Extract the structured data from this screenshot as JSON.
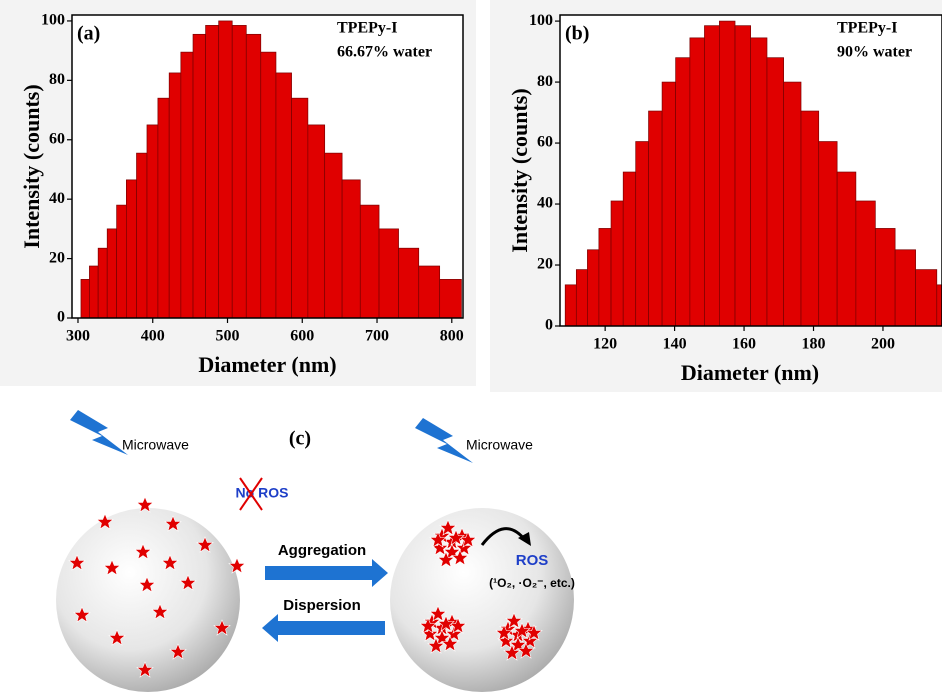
{
  "chart_data": [
    {
      "type": "histogram",
      "panel_label": "(a)",
      "annotations": [
        "TPEPy-I",
        "66.67% water"
      ],
      "xlabel": "Diameter (nm)",
      "ylabel": "Intensity (counts)",
      "color": "#e00000",
      "bins": [
        304,
        315.3,
        327,
        339.1,
        351.7,
        364.7,
        378.3,
        392.3,
        406.9,
        422,
        437.6,
        453.9,
        470.7,
        488.2,
        506.3,
        525.1,
        544.5,
        564.8,
        585.7,
        607.5,
        630,
        653.3,
        677.6,
        702.7,
        728.8,
        755.8,
        783.8,
        812.9
      ],
      "values": [
        13,
        17.5,
        23.5,
        30,
        38,
        46.5,
        55.5,
        65,
        74,
        82.5,
        89.5,
        95.5,
        98.5,
        100,
        98.5,
        95.5,
        89.5,
        82.5,
        74,
        65,
        55.5,
        46.5,
        38,
        30,
        23.5,
        17.5,
        13
      ],
      "xlim": [
        292,
        815
      ],
      "ylim": [
        0,
        102
      ],
      "xticks": [
        300,
        400,
        500,
        600,
        700,
        800
      ],
      "yticks": [
        0,
        20,
        40,
        60,
        80,
        100
      ]
    },
    {
      "type": "histogram",
      "panel_label": "(b)",
      "annotations": [
        "TPEPy-I",
        "90% water"
      ],
      "xlabel": "Diameter (nm)",
      "ylabel": "Intensity (counts)",
      "color": "#e00000",
      "bins": [
        108.5,
        111.7,
        114.9,
        118.2,
        121.7,
        125.2,
        128.8,
        132.5,
        136.4,
        140.3,
        144.4,
        148.6,
        152.9,
        157.4,
        161.9,
        166.6,
        171.4,
        176.4,
        181.5,
        186.8,
        192.2,
        197.8,
        203.5,
        209.4,
        215.5,
        221.7
      ],
      "values": [
        13.5,
        18.5,
        25,
        32,
        41,
        50.5,
        60.5,
        70.5,
        80,
        88,
        94.5,
        98.5,
        100,
        98.5,
        94.5,
        88,
        80,
        70.5,
        60.5,
        50.5,
        41,
        32,
        25,
        18.5,
        13.5
      ],
      "xlim": [
        107,
        217
      ],
      "ylim": [
        0,
        102
      ],
      "xticks": [
        120,
        140,
        160,
        180,
        200
      ],
      "yticks": [
        0,
        20,
        40,
        60,
        80,
        100
      ]
    }
  ],
  "diagram": {
    "panel_label": "(c)",
    "microwave_left": "Microwave",
    "microwave_right": "Microwave",
    "no_ros": "No ROS",
    "aggregation": "Aggregation",
    "dispersion": "Dispersion",
    "ros": "ROS",
    "ros_species": "(¹O₂, ·O₂⁻, etc.)"
  }
}
